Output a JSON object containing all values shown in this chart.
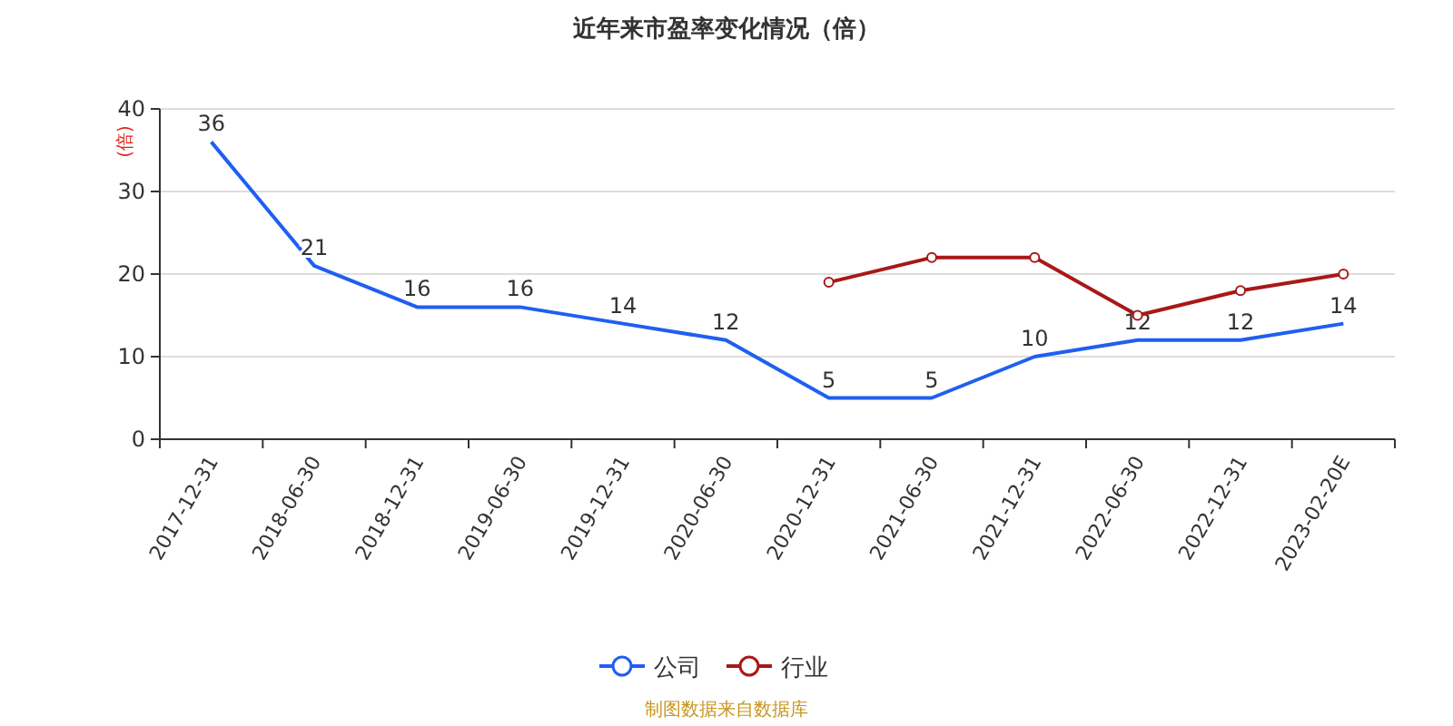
{
  "chart_data": {
    "type": "line",
    "title": "近年来市盈率变化情况（倍）",
    "ylabel": "(倍)",
    "categories": [
      "2017-12-31",
      "2018-06-30",
      "2018-12-31",
      "2019-06-30",
      "2019-12-31",
      "2020-06-30",
      "2020-12-31",
      "2021-06-30",
      "2021-12-31",
      "2022-06-30",
      "2022-12-31",
      "2023-02-20E"
    ],
    "series": [
      {
        "name": "公司",
        "color": "#1f5ff0",
        "marker": "none",
        "values": [
          36,
          21,
          16,
          16,
          14,
          12,
          5,
          5,
          10,
          12,
          12,
          14
        ],
        "value_labels": [
          "36",
          "21",
          "16",
          "16",
          "14",
          "12",
          "5",
          "5",
          "10",
          "12",
          "12",
          "14"
        ]
      },
      {
        "name": "行业",
        "color": "#a81818",
        "marker": "circle",
        "values": [
          null,
          null,
          null,
          null,
          null,
          null,
          19,
          22,
          22,
          15,
          18,
          20
        ]
      }
    ],
    "ylim": [
      0,
      40
    ],
    "yticks": [
      0,
      10,
      20,
      30,
      40
    ],
    "grid": "y",
    "legend": "bottom",
    "annotations": [
      "制图数据来自数据库"
    ]
  }
}
